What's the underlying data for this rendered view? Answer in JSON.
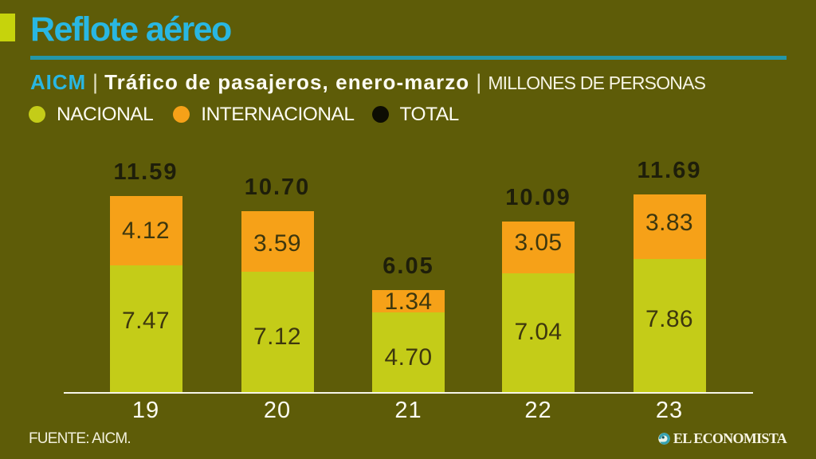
{
  "page": {
    "background_color": "#5e5c08"
  },
  "header": {
    "title": "Reflote aéreo",
    "title_color": "#29b7e2",
    "accent_square_color": "#c6d30c",
    "rule_color": "#2397a8"
  },
  "subtitle": {
    "airport_code": "AICM",
    "separator": "|",
    "description": "Tráfico de pasajeros, enero-marzo",
    "units": "MILLONES DE PERSONAS"
  },
  "legend": {
    "items": [
      {
        "label": "NACIONAL",
        "color": "#c4cc18"
      },
      {
        "label": "INTERNACIONAL",
        "color": "#f6a118"
      },
      {
        "label": "TOTAL",
        "color": "#0d0d03"
      }
    ]
  },
  "chart_data": {
    "type": "bar",
    "stacked": true,
    "title": "Reflote aéreo",
    "subtitle": "AICM | Tráfico de pasajeros, enero-marzo | MILLONES DE PERSONAS",
    "xlabel": "",
    "ylabel": "MILLONES DE PERSONAS",
    "legend_position": "top",
    "grid": false,
    "categories": [
      "19",
      "20",
      "21",
      "22",
      "23"
    ],
    "series": [
      {
        "name": "NACIONAL",
        "color": "#c4cc18",
        "values": [
          7.47,
          7.12,
          4.7,
          7.04,
          7.86
        ],
        "labels": [
          "7.47",
          "7.12",
          "4.70",
          "7.04",
          "7.86"
        ]
      },
      {
        "name": "INTERNACIONAL",
        "color": "#f6a118",
        "values": [
          4.12,
          3.59,
          1.34,
          3.05,
          3.83
        ],
        "labels": [
          "4.12",
          "3.59",
          "1.34",
          "3.05",
          "3.83"
        ]
      }
    ],
    "totals": {
      "name": "TOTAL",
      "color": "#0d0d03",
      "values": [
        11.59,
        10.7,
        6.05,
        10.09,
        11.69
      ],
      "labels": [
        "11.59",
        "10.70",
        "6.05",
        "10.09",
        "11.69"
      ]
    }
  },
  "footer": {
    "source": "FUENTE: AICM.",
    "brand": "EL ECONOMISTA"
  }
}
